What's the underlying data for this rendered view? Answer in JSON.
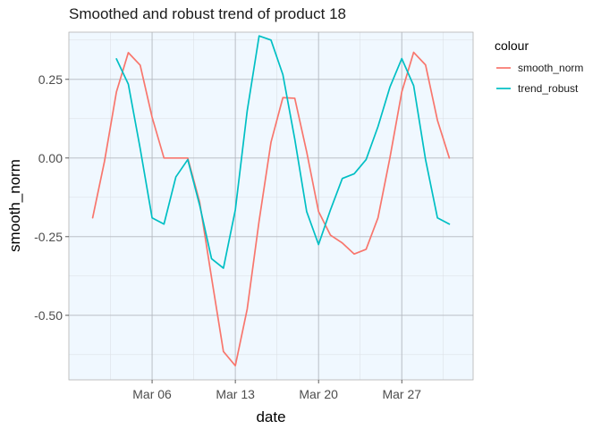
{
  "chart_data": {
    "type": "line",
    "title": "Smoothed and robust trend of product 18",
    "xlabel": "date",
    "ylabel": "smooth_norm",
    "x_dates": [
      "2020-03-01",
      "2020-03-02",
      "2020-03-03",
      "2020-03-04",
      "2020-03-05",
      "2020-03-06",
      "2020-03-07",
      "2020-03-08",
      "2020-03-09",
      "2020-03-10",
      "2020-03-11",
      "2020-03-12",
      "2020-03-13",
      "2020-03-14",
      "2020-03-15",
      "2020-03-16",
      "2020-03-17",
      "2020-03-18",
      "2020-03-19",
      "2020-03-20",
      "2020-03-21",
      "2020-03-22",
      "2020-03-23",
      "2020-03-24",
      "2020-03-25",
      "2020-03-26",
      "2020-03-27",
      "2020-03-28",
      "2020-03-29",
      "2020-03-30",
      "2020-03-31"
    ],
    "xlim": [
      "2020-02-28",
      "2020-04-02"
    ],
    "ylim": [
      -0.705,
      0.4
    ],
    "x_ticks": [
      {
        "date": "2020-03-06",
        "label": "Mar 06"
      },
      {
        "date": "2020-03-13",
        "label": "Mar 13"
      },
      {
        "date": "2020-03-20",
        "label": "Mar 20"
      },
      {
        "date": "2020-03-27",
        "label": "Mar 27"
      }
    ],
    "y_ticks": [
      {
        "value": 0.25,
        "label": "0.25"
      },
      {
        "value": 0.0,
        "label": "0.00"
      },
      {
        "value": -0.25,
        "label": "-0.25"
      },
      {
        "value": -0.5,
        "label": "-0.50"
      }
    ],
    "grid": true,
    "legend": {
      "title": "colour",
      "position": "right"
    },
    "series": [
      {
        "name": "smooth_norm",
        "color": "#F8766D",
        "values": [
          -0.19,
          -0.01,
          0.21,
          0.335,
          0.295,
          0.13,
          0.0,
          0.0,
          0.0,
          -0.14,
          -0.38,
          -0.615,
          -0.66,
          -0.48,
          -0.2,
          0.05,
          0.192,
          0.19,
          0.02,
          -0.17,
          -0.245,
          -0.27,
          -0.305,
          -0.29,
          -0.19,
          0.0,
          0.21,
          0.336,
          0.296,
          0.12,
          0.0
        ]
      },
      {
        "name": "trend_robust",
        "color": "#00BFC4",
        "values": [
          null,
          null,
          0.315,
          0.235,
          0.03,
          -0.19,
          -0.21,
          -0.06,
          -0.005,
          -0.15,
          -0.32,
          -0.35,
          -0.165,
          0.15,
          0.388,
          0.375,
          0.265,
          0.06,
          -0.17,
          -0.275,
          -0.165,
          -0.065,
          -0.05,
          -0.005,
          0.1,
          0.225,
          0.316,
          0.23,
          -0.005,
          -0.19,
          -0.21
        ]
      }
    ]
  }
}
